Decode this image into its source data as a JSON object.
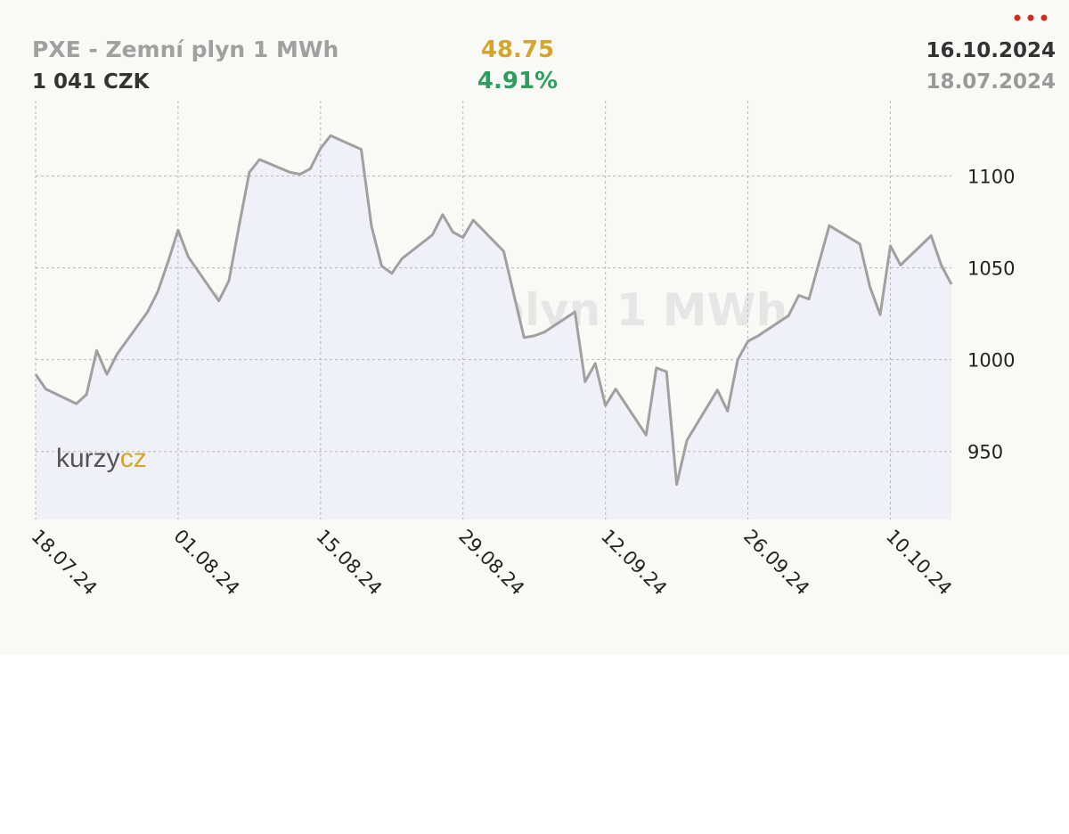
{
  "chart_data": {
    "type": "line",
    "title": "PXE - Zemní plyn 1 MWh",
    "price": "1 041 CZK",
    "change": "48.75",
    "change_percent": "4.91%",
    "date_end": "16.10.2024",
    "date_start": "18.07.2024",
    "logo": [
      "kurzy",
      "cz"
    ],
    "x": [
      "18.07.24",
      "19.07.24",
      "22.07.24",
      "23.07.24",
      "24.07.24",
      "25.07.24",
      "26.07.24",
      "29.07.24",
      "30.07.24",
      "31.07.24",
      "01.08.24",
      "02.08.24",
      "05.08.24",
      "06.08.24",
      "07.08.24",
      "08.08.24",
      "09.08.24",
      "12.08.24",
      "13.08.24",
      "14.08.24",
      "15.08.24",
      "16.08.24",
      "19.08.24",
      "20.08.24",
      "21.08.24",
      "22.08.24",
      "23.08.24",
      "26.08.24",
      "27.08.24",
      "28.08.24",
      "29.08.24",
      "30.08.24",
      "02.09.24",
      "03.09.24",
      "04.09.24",
      "05.09.24",
      "06.09.24",
      "09.09.24",
      "10.09.24",
      "11.09.24",
      "12.09.24",
      "13.09.24",
      "16.09.24",
      "17.09.24",
      "18.09.24",
      "19.09.24",
      "20.09.24",
      "23.09.24",
      "24.09.24",
      "25.09.24",
      "26.09.24",
      "27.09.24",
      "30.09.24",
      "01.10.24",
      "02.10.24",
      "03.10.24",
      "04.10.24",
      "07.10.24",
      "08.10.24",
      "09.10.24",
      "10.10.24",
      "11.10.24",
      "14.10.24",
      "15.10.24",
      "16.10.24"
    ],
    "series": [
      {
        "name": "PXE - Zemní plyn 1 MWh",
        "color": "#a0a0a0",
        "fill": "#eff0f8",
        "values": [
          992,
          984,
          976,
          981,
          1005,
          992,
          1003,
          1026,
          1037,
          1053,
          1070.5,
          1056,
          1032,
          1043,
          1073,
          1102,
          1109,
          1102,
          1101,
          1104,
          1115,
          1122,
          1114.5,
          1073,
          1051,
          1047,
          1055,
          1068,
          1079,
          1069.5,
          1066.5,
          1076,
          1059,
          1035.5,
          1012,
          1013,
          1015,
          1026,
          988,
          998,
          975,
          984,
          959,
          995.5,
          993.5,
          932,
          956,
          983.5,
          972,
          1000,
          1010,
          1013,
          1024,
          1035,
          1033,
          1053,
          1073,
          1063,
          1039.5,
          1024.5,
          1062,
          1051.5,
          1067.5,
          1051.5,
          1041
        ]
      }
    ],
    "xlim": [
      "18.07.24",
      "16.10.24"
    ],
    "xticks": [
      "18.07.24",
      "01.08.24",
      "15.08.24",
      "29.08.24",
      "12.09.24",
      "26.09.24",
      "10.10.24"
    ],
    "ylim": [
      913,
      1141
    ],
    "yticks": [
      950,
      1000,
      1050,
      1100
    ],
    "grid": true
  }
}
